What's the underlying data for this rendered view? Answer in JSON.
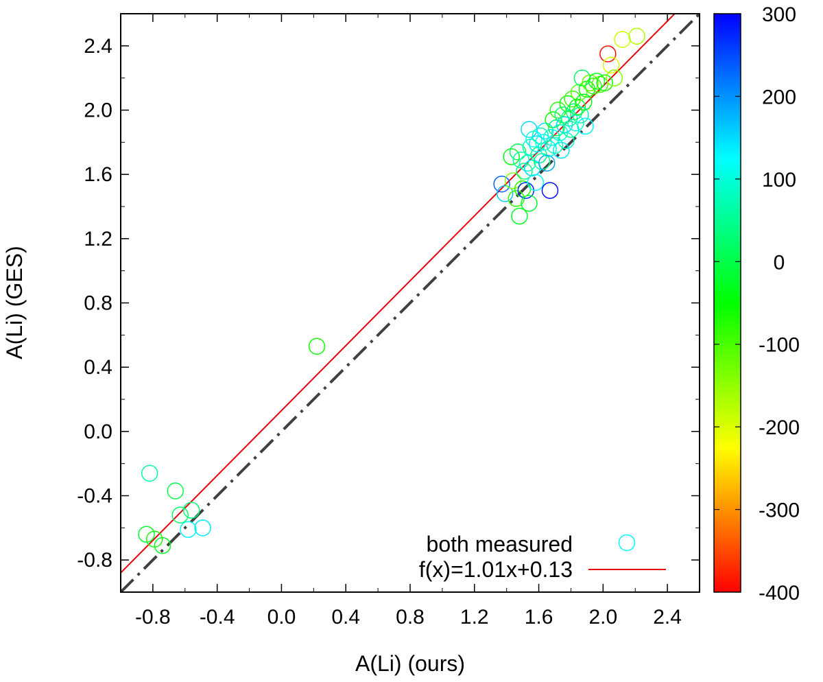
{
  "chart_data": {
    "type": "scatter",
    "xlabel": "A(Li) (ours)",
    "ylabel": "A(Li) (GES)",
    "xlim": [
      -1.0,
      2.6
    ],
    "ylim": [
      -1.0,
      2.6
    ],
    "x_ticks": [
      "-0.8",
      "-0.4",
      "0.0",
      "0.4",
      "0.8",
      "1.2",
      "1.6",
      "2.0",
      "2.4"
    ],
    "x_tick_values": [
      -0.8,
      -0.4,
      0.0,
      0.4,
      0.8,
      1.2,
      1.6,
      2.0,
      2.4
    ],
    "y_ticks": [
      "-0.8",
      "-0.4",
      "0.0",
      "0.4",
      "0.8",
      "1.2",
      "1.6",
      "2.0",
      "2.4"
    ],
    "y_tick_values": [
      -0.8,
      -0.4,
      0.0,
      0.4,
      0.8,
      1.2,
      1.6,
      2.0,
      2.4
    ],
    "grid": false,
    "legend_position": "bottom-right",
    "colorbar": {
      "range": [
        -400,
        300
      ],
      "ticks": [
        "300",
        "200",
        "100",
        "0",
        "-100",
        "-200",
        "-300",
        "-400"
      ],
      "tick_values": [
        300,
        200,
        100,
        0,
        -100,
        -200,
        -300,
        -400
      ],
      "colormap": [
        "#ff0000",
        "#ff8000",
        "#ffff00",
        "#80ff00",
        "#00ff00",
        "#00ff80",
        "#00ffff",
        "#0080ff",
        "#0000ff"
      ]
    },
    "series": [
      {
        "name": "both measured",
        "kind": "scatter",
        "marker": "open-circle",
        "points": [
          {
            "x": -0.82,
            "y": -0.26,
            "c": 60
          },
          {
            "x": -0.84,
            "y": -0.64,
            "c": -20
          },
          {
            "x": -0.79,
            "y": -0.67,
            "c": -60
          },
          {
            "x": -0.74,
            "y": -0.71,
            "c": -30
          },
          {
            "x": -0.66,
            "y": -0.37,
            "c": 0
          },
          {
            "x": -0.63,
            "y": -0.52,
            "c": 20
          },
          {
            "x": -0.58,
            "y": -0.61,
            "c": 130
          },
          {
            "x": -0.56,
            "y": -0.49,
            "c": 30
          },
          {
            "x": -0.49,
            "y": -0.6,
            "c": 140
          },
          {
            "x": 0.22,
            "y": 0.53,
            "c": -60
          },
          {
            "x": 1.37,
            "y": 1.54,
            "c": 230
          },
          {
            "x": 1.39,
            "y": 1.48,
            "c": 160
          },
          {
            "x": 1.43,
            "y": 1.71,
            "c": -40
          },
          {
            "x": 1.44,
            "y": 1.56,
            "c": -140
          },
          {
            "x": 1.46,
            "y": 1.45,
            "c": -80
          },
          {
            "x": 1.47,
            "y": 1.74,
            "c": 10
          },
          {
            "x": 1.48,
            "y": 1.34,
            "c": -30
          },
          {
            "x": 1.49,
            "y": 1.69,
            "c": 60
          },
          {
            "x": 1.5,
            "y": 1.51,
            "c": -70
          },
          {
            "x": 1.51,
            "y": 1.62,
            "c": 30
          },
          {
            "x": 1.52,
            "y": 1.5,
            "c": 270
          },
          {
            "x": 1.53,
            "y": 1.67,
            "c": 90
          },
          {
            "x": 1.54,
            "y": 1.42,
            "c": -20
          },
          {
            "x": 1.54,
            "y": 1.88,
            "c": 150
          },
          {
            "x": 1.55,
            "y": 1.77,
            "c": 80
          },
          {
            "x": 1.56,
            "y": 1.64,
            "c": 150
          },
          {
            "x": 1.57,
            "y": 1.82,
            "c": 110
          },
          {
            "x": 1.58,
            "y": 1.55,
            "c": 130
          },
          {
            "x": 1.59,
            "y": 1.79,
            "c": 140
          },
          {
            "x": 1.6,
            "y": 1.72,
            "c": 40
          },
          {
            "x": 1.61,
            "y": 1.84,
            "c": 70
          },
          {
            "x": 1.62,
            "y": 1.68,
            "c": 50
          },
          {
            "x": 1.63,
            "y": 1.8,
            "c": 120
          },
          {
            "x": 1.64,
            "y": 1.87,
            "c": 140
          },
          {
            "x": 1.65,
            "y": 1.67,
            "c": 190
          },
          {
            "x": 1.66,
            "y": 1.76,
            "c": 90
          },
          {
            "x": 1.67,
            "y": 1.5,
            "c": 290
          },
          {
            "x": 1.68,
            "y": 1.83,
            "c": 100
          },
          {
            "x": 1.69,
            "y": 1.94,
            "c": -60
          },
          {
            "x": 1.7,
            "y": 1.78,
            "c": 60
          },
          {
            "x": 1.71,
            "y": 1.89,
            "c": 20
          },
          {
            "x": 1.72,
            "y": 2.0,
            "c": -80
          },
          {
            "x": 1.73,
            "y": 1.86,
            "c": 110
          },
          {
            "x": 1.74,
            "y": 1.75,
            "c": 140
          },
          {
            "x": 1.75,
            "y": 1.97,
            "c": 30
          },
          {
            "x": 1.76,
            "y": 1.91,
            "c": 150
          },
          {
            "x": 1.77,
            "y": 1.81,
            "c": 90
          },
          {
            "x": 1.78,
            "y": 2.04,
            "c": -50
          },
          {
            "x": 1.79,
            "y": 1.95,
            "c": 70
          },
          {
            "x": 1.8,
            "y": 1.88,
            "c": 40
          },
          {
            "x": 1.81,
            "y": 2.07,
            "c": -90
          },
          {
            "x": 1.82,
            "y": 1.99,
            "c": 20
          },
          {
            "x": 1.83,
            "y": 1.92,
            "c": 100
          },
          {
            "x": 1.84,
            "y": 2.02,
            "c": -20
          },
          {
            "x": 1.85,
            "y": 2.11,
            "c": -110
          },
          {
            "x": 1.86,
            "y": 1.97,
            "c": 60
          },
          {
            "x": 1.87,
            "y": 2.2,
            "c": 20
          },
          {
            "x": 1.88,
            "y": 2.05,
            "c": -40
          },
          {
            "x": 1.89,
            "y": 1.9,
            "c": 130
          },
          {
            "x": 1.9,
            "y": 2.13,
            "c": -60
          },
          {
            "x": 1.92,
            "y": 2.17,
            "c": -120
          },
          {
            "x": 1.94,
            "y": 2.15,
            "c": -80
          },
          {
            "x": 1.96,
            "y": 2.18,
            "c": -30
          },
          {
            "x": 1.98,
            "y": 2.16,
            "c": -100
          },
          {
            "x": 2.01,
            "y": 2.17,
            "c": -60
          },
          {
            "x": 2.03,
            "y": 2.35,
            "c": -390
          },
          {
            "x": 2.05,
            "y": 2.28,
            "c": -200
          },
          {
            "x": 2.07,
            "y": 2.2,
            "c": -140
          },
          {
            "x": 2.12,
            "y": 2.44,
            "c": -190
          },
          {
            "x": 2.21,
            "y": 2.46,
            "c": -170
          }
        ]
      },
      {
        "name": "f(x)=1.01x+0.13",
        "kind": "line",
        "color": "#e8000b",
        "slope": 1.01,
        "intercept": 0.13
      },
      {
        "kind": "line",
        "color": "#404040",
        "style": "dash-dot",
        "slope": 1.0,
        "intercept": 0.0
      }
    ]
  }
}
